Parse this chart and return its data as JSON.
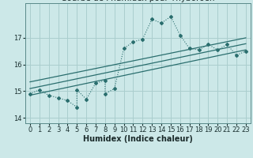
{
  "xlabel": "Humidex (Indice chaleur)",
  "ylabel": "",
  "bg_color": "#cce8e8",
  "grid_color": "#aacece",
  "line_color": "#2a6e6e",
  "xlim": [
    -0.5,
    23.5
  ],
  "ylim": [
    13.8,
    18.3
  ],
  "yticks": [
    14,
    15,
    16,
    17
  ],
  "xticks": [
    0,
    1,
    2,
    3,
    4,
    5,
    6,
    7,
    8,
    9,
    10,
    11,
    12,
    13,
    14,
    15,
    16,
    17,
    18,
    19,
    20,
    21,
    22,
    23
  ],
  "scatter_x": [
    0,
    1,
    2,
    3,
    4,
    5,
    5,
    6,
    7,
    8,
    8,
    9,
    10,
    11,
    12,
    13,
    14,
    15,
    16,
    17,
    18,
    19,
    20,
    21,
    22,
    23
  ],
  "scatter_y": [
    14.9,
    15.05,
    14.85,
    14.75,
    14.65,
    14.4,
    15.05,
    14.7,
    15.3,
    15.4,
    14.9,
    15.1,
    16.6,
    16.85,
    16.95,
    17.7,
    17.55,
    17.8,
    17.1,
    16.6,
    16.55,
    16.75,
    16.55,
    16.75,
    16.35,
    16.5
  ],
  "reg_line1": {
    "x": [
      0,
      23
    ],
    "y": [
      14.85,
      16.55
    ]
  },
  "reg_line2": {
    "x": [
      0,
      23
    ],
    "y": [
      15.1,
      16.78
    ]
  },
  "reg_line3": {
    "x": [
      0,
      23
    ],
    "y": [
      15.35,
      17.0
    ]
  },
  "title_fontsize": 7.5,
  "tick_fontsize": 6,
  "label_fontsize": 7
}
